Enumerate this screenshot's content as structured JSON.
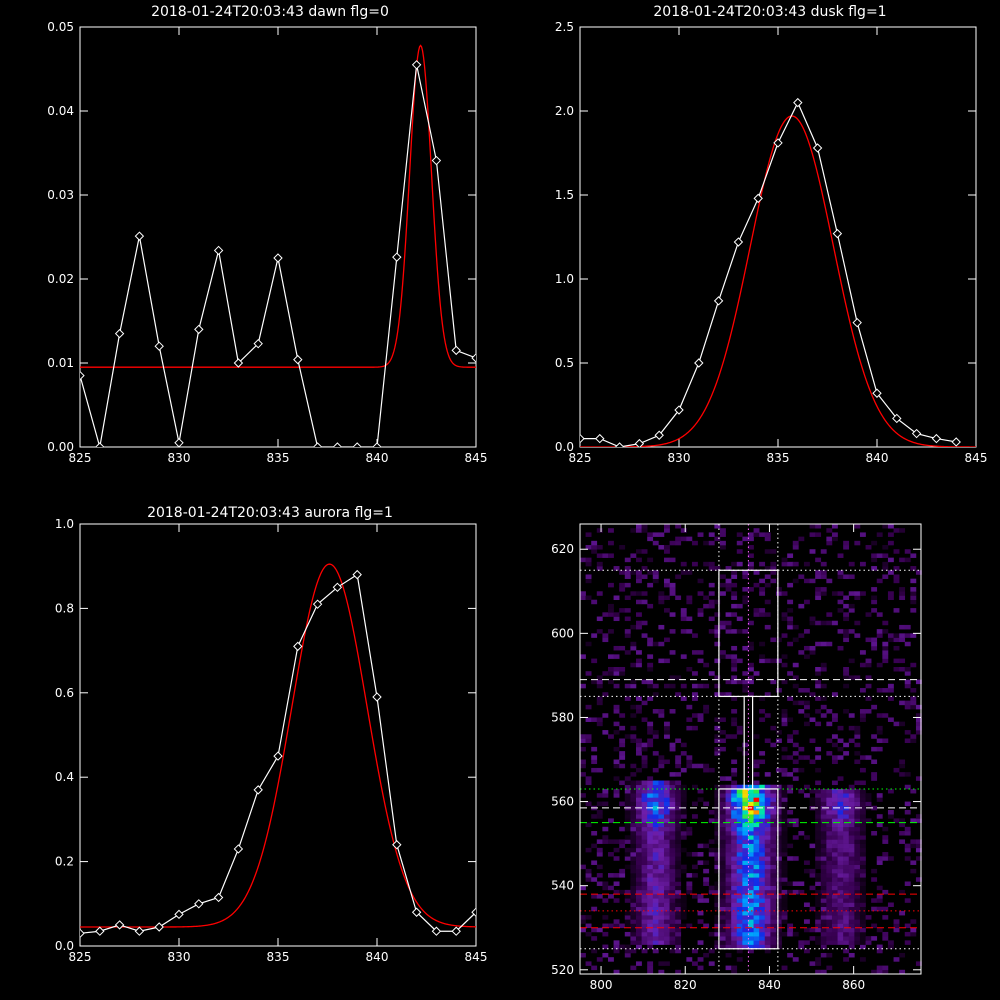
{
  "chart_data": [
    {
      "type": "line",
      "title": "2018-01-24T20:03:43 dawn flg=0",
      "xlim": [
        825,
        845
      ],
      "ylim": [
        0,
        0.05
      ],
      "xticks": [
        825,
        830,
        835,
        840,
        845
      ],
      "yticks": [
        0.0,
        0.01,
        0.02,
        0.03,
        0.04,
        0.05
      ],
      "ytick_labels": [
        "0.00",
        "0.01",
        "0.02",
        "0.03",
        "0.04",
        "0.05"
      ],
      "series": [
        {
          "role": "data",
          "color": "#ffffff",
          "marker": "diamond",
          "x": [
            825,
            826,
            827,
            828,
            829,
            830,
            831,
            832,
            833,
            834,
            835,
            836,
            837,
            838,
            839,
            840,
            841,
            842,
            843,
            844,
            845
          ],
          "y": [
            0.0085,
            0.0,
            0.0135,
            0.0251,
            0.012,
            0.0005,
            0.014,
            0.0234,
            0.01,
            0.0123,
            0.0225,
            0.0104,
            0.0,
            0.0,
            0.0,
            0.0,
            0.0226,
            0.0455,
            0.0341,
            0.0115,
            0.0106
          ]
        },
        {
          "role": "fit",
          "color": "#ff0000",
          "model": "gaussian",
          "center": 842.2,
          "sigma": 0.55,
          "amplitude": 0.0383,
          "baseline": 0.0095
        }
      ]
    },
    {
      "type": "line",
      "title": "2018-01-24T20:03:43 dusk flg=1",
      "xlim": [
        825,
        845
      ],
      "ylim": [
        0,
        2.5
      ],
      "xticks": [
        825,
        830,
        835,
        840,
        845
      ],
      "yticks": [
        0.0,
        0.5,
        1.0,
        1.5,
        2.0,
        2.5
      ],
      "ytick_labels": [
        "0.0",
        "0.5",
        "1.0",
        "1.5",
        "2.0",
        "2.5"
      ],
      "series": [
        {
          "role": "data",
          "color": "#ffffff",
          "marker": "diamond",
          "x": [
            825,
            826,
            827,
            828,
            829,
            830,
            831,
            832,
            833,
            834,
            835,
            836,
            837,
            838,
            839,
            840,
            841,
            842,
            843,
            844
          ],
          "y": [
            0.05,
            0.05,
            0.0,
            0.02,
            0.07,
            0.22,
            0.5,
            0.87,
            1.22,
            1.48,
            1.81,
            2.05,
            1.78,
            1.27,
            0.74,
            0.32,
            0.17,
            0.08,
            0.05,
            0.03
          ]
        },
        {
          "role": "fit",
          "color": "#ff0000",
          "model": "gaussian",
          "center": 835.7,
          "sigma": 2.1,
          "amplitude": 1.97,
          "baseline": 0.0
        }
      ]
    },
    {
      "type": "line",
      "title": "2018-01-24T20:03:43 aurora flg=1",
      "xlim": [
        825,
        845
      ],
      "ylim": [
        0,
        1.0
      ],
      "xticks": [
        825,
        830,
        835,
        840,
        845
      ],
      "yticks": [
        0.0,
        0.2,
        0.4,
        0.6,
        0.8,
        1.0
      ],
      "ytick_labels": [
        "0.0",
        "0.2",
        "0.4",
        "0.6",
        "0.8",
        "1.0"
      ],
      "series": [
        {
          "role": "data",
          "color": "#ffffff",
          "marker": "diamond",
          "x": [
            825,
            826,
            827,
            828,
            829,
            830,
            831,
            832,
            833,
            834,
            835,
            836,
            837,
            838,
            839,
            840,
            841,
            842,
            843,
            844,
            845
          ],
          "y": [
            0.03,
            0.035,
            0.05,
            0.035,
            0.045,
            0.075,
            0.1,
            0.115,
            0.23,
            0.37,
            0.45,
            0.71,
            0.81,
            0.85,
            0.88,
            0.59,
            0.24,
            0.08,
            0.035,
            0.035,
            0.08
          ]
        },
        {
          "role": "fit",
          "color": "#ff0000",
          "model": "gaussian",
          "center": 837.6,
          "sigma": 1.9,
          "amplitude": 0.86,
          "baseline": 0.045
        }
      ]
    },
    {
      "type": "heatmap",
      "xlim": [
        795,
        876
      ],
      "ylim": [
        519,
        626
      ],
      "xticks": [
        800,
        820,
        840,
        860
      ],
      "yticks": [
        520,
        540,
        560,
        580,
        600,
        620
      ],
      "colormap": "rainbow",
      "emission_bands": [
        {
          "x_center": 813,
          "width": 8,
          "y_bottom": 526,
          "y_top": 565,
          "peak_y": 560,
          "intensity": 0.55
        },
        {
          "x_center": 835.5,
          "width": 9,
          "y_bottom": 525,
          "y_top": 564,
          "peak_y": 560,
          "intensity": 1.0
        },
        {
          "x_center": 857,
          "width": 8,
          "y_bottom": 526,
          "y_top": 563,
          "peak_y": 560,
          "intensity": 0.4
        }
      ],
      "boxes": [
        {
          "color": "#ffffff",
          "x": [
            828,
            842
          ],
          "y": [
            525,
            563
          ]
        },
        {
          "color": "#ffffff",
          "x": [
            828,
            842
          ],
          "y": [
            585,
            615
          ]
        },
        {
          "color": "#ffffff",
          "x": [
            834,
            836
          ],
          "y": [
            563,
            585
          ]
        }
      ],
      "vlines": [
        {
          "x": 835,
          "color": "#ff66ff",
          "style": "dotted"
        },
        {
          "x": 828,
          "color": "#ffffff",
          "style": "dotted"
        },
        {
          "x": 842,
          "color": "#ffffff",
          "style": "dotted"
        }
      ],
      "hlines": [
        {
          "y": 615,
          "color": "#ffffff",
          "style": "dotted"
        },
        {
          "y": 589,
          "color": "#ffffff",
          "style": "dashed"
        },
        {
          "y": 585,
          "color": "#ffffff",
          "style": "dotted"
        },
        {
          "y": 563,
          "color": "#00ff00",
          "style": "dotted"
        },
        {
          "y": 558.5,
          "color": "#ffffff",
          "style": "dashed"
        },
        {
          "y": 555,
          "color": "#00ff00",
          "style": "dashed"
        },
        {
          "y": 538,
          "color": "#ff0000",
          "style": "dashed"
        },
        {
          "y": 534,
          "color": "#ff0000",
          "style": "dotted"
        },
        {
          "y": 530,
          "color": "#ff0000",
          "style": "dashed"
        },
        {
          "y": 525,
          "color": "#ffffff",
          "style": "dotted"
        }
      ]
    }
  ]
}
